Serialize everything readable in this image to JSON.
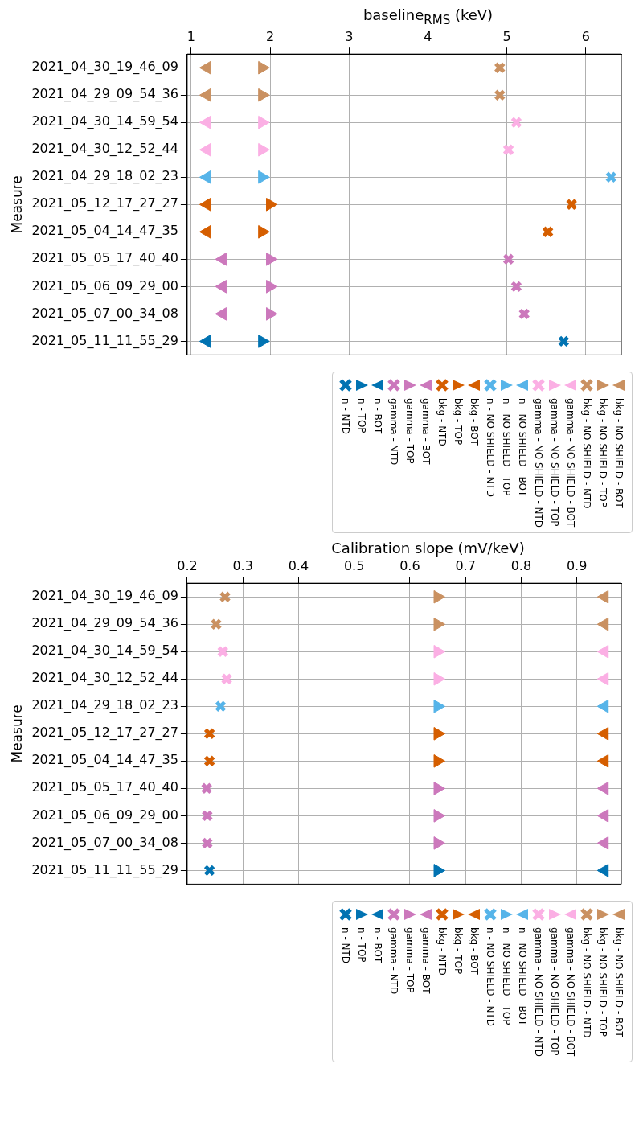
{
  "chart_data": [
    {
      "type": "scatter",
      "orientation": "horizontal",
      "xlabel": "baseline$_{RMS}$ (keV)",
      "ylabel": "Measure",
      "xlim": [
        0.95,
        6.45
      ],
      "xticks": [
        1,
        2,
        3,
        4,
        5,
        6
      ],
      "grid": true,
      "legend": "bottom right",
      "categories": [
        "2021_04_30_19_46_09",
        "2021_04_29_09_54_36",
        "2021_04_30_14_59_54",
        "2021_04_30_12_52_44",
        "2021_04_29_18_02_23",
        "2021_05_12_17_27_27",
        "2021_05_04_14_47_35",
        "2021_05_05_17_40_40",
        "2021_05_06_09_29_00",
        "2021_05_07_00_34_08",
        "2021_05_11_11_55_29"
      ],
      "series": [
        {
          "name": "n - NTD",
          "color": "#0173b2",
          "marker": "cross",
          "values": [
            null,
            null,
            null,
            null,
            null,
            null,
            null,
            null,
            null,
            null,
            5.72
          ]
        },
        {
          "name": "n - TOP",
          "color": "#0173b2",
          "marker": "triangle-right",
          "values": [
            null,
            null,
            null,
            null,
            null,
            null,
            null,
            null,
            null,
            null,
            1.9
          ]
        },
        {
          "name": "n - BOT",
          "color": "#0173b2",
          "marker": "triangle-left",
          "values": [
            null,
            null,
            null,
            null,
            null,
            null,
            null,
            null,
            null,
            null,
            1.2
          ]
        },
        {
          "name": "gamma - NTD",
          "color": "#cc78bc",
          "marker": "cross",
          "values": [
            null,
            null,
            null,
            null,
            null,
            null,
            null,
            5.02,
            5.12,
            5.22,
            null
          ]
        },
        {
          "name": "gamma - TOP",
          "color": "#cc78bc",
          "marker": "triangle-right",
          "values": [
            null,
            null,
            null,
            null,
            null,
            null,
            null,
            2.0,
            2.0,
            2.0,
            null
          ]
        },
        {
          "name": "gamma - BOT",
          "color": "#cc78bc",
          "marker": "triangle-left",
          "values": [
            null,
            null,
            null,
            null,
            null,
            null,
            null,
            1.4,
            1.4,
            1.4,
            null
          ]
        },
        {
          "name": "bkg - NTD",
          "color": "#d55e00",
          "marker": "cross",
          "values": [
            null,
            null,
            null,
            null,
            null,
            5.82,
            5.52,
            null,
            null,
            null,
            null
          ]
        },
        {
          "name": "bkg - TOP",
          "color": "#d55e00",
          "marker": "triangle-right",
          "values": [
            null,
            null,
            null,
            null,
            null,
            2.0,
            1.9,
            null,
            null,
            null,
            null
          ]
        },
        {
          "name": "bkg - BOT",
          "color": "#d55e00",
          "marker": "triangle-left",
          "values": [
            null,
            null,
            null,
            null,
            null,
            1.2,
            1.2,
            null,
            null,
            null,
            null
          ]
        },
        {
          "name": "n - NO SHIELD - NTD",
          "color": "#56b4e9",
          "marker": "cross",
          "values": [
            null,
            null,
            null,
            null,
            6.32,
            null,
            null,
            null,
            null,
            null,
            null
          ]
        },
        {
          "name": "n - NO SHIELD - TOP",
          "color": "#56b4e9",
          "marker": "triangle-right",
          "values": [
            null,
            null,
            null,
            null,
            1.9,
            null,
            null,
            null,
            null,
            null,
            null
          ]
        },
        {
          "name": "n - NO SHIELD - BOT",
          "color": "#56b4e9",
          "marker": "triangle-left",
          "values": [
            null,
            null,
            null,
            null,
            1.2,
            null,
            null,
            null,
            null,
            null,
            null
          ]
        },
        {
          "name": "gamma - NO SHIELD - NTD",
          "color": "#fbafe4",
          "marker": "cross",
          "values": [
            null,
            null,
            5.12,
            5.02,
            null,
            null,
            null,
            null,
            null,
            null,
            null
          ]
        },
        {
          "name": "gamma - NO SHIELD - TOP",
          "color": "#fbafe4",
          "marker": "triangle-right",
          "values": [
            null,
            null,
            1.9,
            1.9,
            null,
            null,
            null,
            null,
            null,
            null,
            null
          ]
        },
        {
          "name": "gamma - NO SHIELD - BOT",
          "color": "#fbafe4",
          "marker": "triangle-left",
          "values": [
            null,
            null,
            1.2,
            1.2,
            null,
            null,
            null,
            null,
            null,
            null,
            null
          ]
        },
        {
          "name": "bkg - NO SHIELD - NTD",
          "color": "#ca9161",
          "marker": "cross",
          "values": [
            4.91,
            4.91,
            null,
            null,
            null,
            null,
            null,
            null,
            null,
            null,
            null
          ]
        },
        {
          "name": "bkg - NO SHIELD - TOP",
          "color": "#ca9161",
          "marker": "triangle-right",
          "values": [
            1.9,
            1.9,
            null,
            null,
            null,
            null,
            null,
            null,
            null,
            null,
            null
          ]
        },
        {
          "name": "bkg - NO SHIELD - BOT",
          "color": "#ca9161",
          "marker": "triangle-left",
          "values": [
            1.2,
            1.2,
            null,
            null,
            null,
            null,
            null,
            null,
            null,
            null,
            null
          ]
        }
      ]
    },
    {
      "type": "scatter",
      "orientation": "horizontal",
      "xlabel": "Calibration slope (mV/keV)",
      "ylabel": "Measure",
      "xlim": [
        0.2,
        0.98
      ],
      "xticks": [
        0.2,
        0.3,
        0.4,
        0.5,
        0.6,
        0.7,
        0.8,
        0.9
      ],
      "grid": true,
      "legend": "bottom right",
      "categories": [
        "2021_04_30_19_46_09",
        "2021_04_29_09_54_36",
        "2021_04_30_14_59_54",
        "2021_04_30_12_52_44",
        "2021_04_29_18_02_23",
        "2021_05_12_17_27_27",
        "2021_05_04_14_47_35",
        "2021_05_05_17_40_40",
        "2021_05_06_09_29_00",
        "2021_05_07_00_34_08",
        "2021_05_11_11_55_29"
      ],
      "series": [
        {
          "name": "n - NTD",
          "color": "#0173b2",
          "marker": "cross",
          "values": [
            null,
            null,
            null,
            null,
            null,
            null,
            null,
            null,
            null,
            null,
            0.24
          ]
        },
        {
          "name": "n - TOP",
          "color": "#0173b2",
          "marker": "triangle-right",
          "values": [
            null,
            null,
            null,
            null,
            null,
            null,
            null,
            null,
            null,
            null,
            0.65
          ]
        },
        {
          "name": "n - BOT",
          "color": "#0173b2",
          "marker": "triangle-left",
          "values": [
            null,
            null,
            null,
            null,
            null,
            null,
            null,
            null,
            null,
            null,
            0.95
          ]
        },
        {
          "name": "gamma - NTD",
          "color": "#cc78bc",
          "marker": "cross",
          "values": [
            null,
            null,
            null,
            null,
            null,
            null,
            null,
            0.235,
            0.236,
            0.236,
            null
          ]
        },
        {
          "name": "gamma - TOP",
          "color": "#cc78bc",
          "marker": "triangle-right",
          "values": [
            null,
            null,
            null,
            null,
            null,
            null,
            null,
            0.65,
            0.65,
            0.65,
            null
          ]
        },
        {
          "name": "gamma - BOT",
          "color": "#cc78bc",
          "marker": "triangle-left",
          "values": [
            null,
            null,
            null,
            null,
            null,
            null,
            null,
            0.95,
            0.95,
            0.95,
            null
          ]
        },
        {
          "name": "bkg - NTD",
          "color": "#d55e00",
          "marker": "cross",
          "values": [
            null,
            null,
            null,
            null,
            null,
            0.24,
            0.24,
            null,
            null,
            null,
            null
          ]
        },
        {
          "name": "bkg - TOP",
          "color": "#d55e00",
          "marker": "triangle-right",
          "values": [
            null,
            null,
            null,
            null,
            null,
            0.65,
            0.65,
            null,
            null,
            null,
            null
          ]
        },
        {
          "name": "bkg - BOT",
          "color": "#d55e00",
          "marker": "triangle-left",
          "values": [
            null,
            null,
            null,
            null,
            null,
            0.95,
            0.95,
            null,
            null,
            null,
            null
          ]
        },
        {
          "name": "n - NO SHIELD - NTD",
          "color": "#56b4e9",
          "marker": "cross",
          "values": [
            null,
            null,
            null,
            null,
            0.26,
            null,
            null,
            null,
            null,
            null,
            null
          ]
        },
        {
          "name": "n - NO SHIELD - TOP",
          "color": "#56b4e9",
          "marker": "triangle-right",
          "values": [
            null,
            null,
            null,
            null,
            0.65,
            null,
            null,
            null,
            null,
            null,
            null
          ]
        },
        {
          "name": "n - NO SHIELD - BOT",
          "color": "#56b4e9",
          "marker": "triangle-left",
          "values": [
            null,
            null,
            null,
            null,
            0.95,
            null,
            null,
            null,
            null,
            null,
            null
          ]
        },
        {
          "name": "gamma - NO SHIELD - NTD",
          "color": "#fbafe4",
          "marker": "cross",
          "values": [
            null,
            null,
            0.264,
            0.271,
            null,
            null,
            null,
            null,
            null,
            null,
            null
          ]
        },
        {
          "name": "gamma - NO SHIELD - TOP",
          "color": "#fbafe4",
          "marker": "triangle-right",
          "values": [
            null,
            null,
            0.65,
            0.65,
            null,
            null,
            null,
            null,
            null,
            null,
            null
          ]
        },
        {
          "name": "gamma - NO SHIELD - BOT",
          "color": "#fbafe4",
          "marker": "triangle-left",
          "values": [
            null,
            null,
            0.95,
            0.95,
            null,
            null,
            null,
            null,
            null,
            null,
            null
          ]
        },
        {
          "name": "bkg - NO SHIELD - NTD",
          "color": "#ca9161",
          "marker": "cross",
          "values": [
            0.268,
            0.252,
            null,
            null,
            null,
            null,
            null,
            null,
            null,
            null,
            null
          ]
        },
        {
          "name": "bkg - NO SHIELD - TOP",
          "color": "#ca9161",
          "marker": "triangle-right",
          "values": [
            0.65,
            0.65,
            null,
            null,
            null,
            null,
            null,
            null,
            null,
            null,
            null
          ]
        },
        {
          "name": "bkg - NO SHIELD - BOT",
          "color": "#ca9161",
          "marker": "triangle-left",
          "values": [
            0.95,
            0.95,
            null,
            null,
            null,
            null,
            null,
            null,
            null,
            null,
            null
          ]
        }
      ]
    }
  ]
}
